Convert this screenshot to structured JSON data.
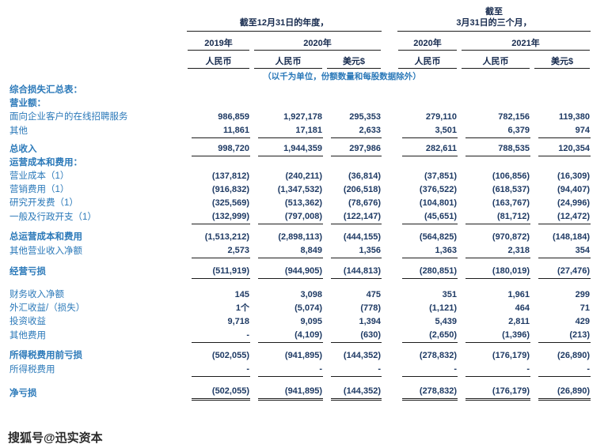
{
  "colors": {
    "label": "#2b79b9",
    "number": "#1e3a64",
    "header": "#15294d",
    "note": "#2b79b9",
    "line": "#1c1c1c"
  },
  "header": {
    "period1": "截至12月31日的年度，",
    "period2_line1": "截至",
    "period2_line2": "3月31日的三个月，",
    "years": [
      "2019年",
      "2020年",
      "2020年",
      "2021年"
    ],
    "currencies": [
      "人民币",
      "人民币",
      "美元$",
      "人民币",
      "人民币",
      "美元$"
    ],
    "unit_note": "（以千为单位，份额数量和每股数据除外）"
  },
  "table": {
    "rows": [
      {
        "label": "综合损失汇总表：",
        "bold": true
      },
      {
        "label": "营业额：",
        "bold": true
      },
      {
        "label": "面向企业客户的在线招聘服务",
        "values": [
          "986,859",
          "1,927,178",
          "295,353",
          "279,110",
          "782,156",
          "119,380"
        ]
      },
      {
        "label": "其他",
        "values": [
          "11,861",
          "17,181",
          "2,633",
          "3,501",
          "6,379",
          "974"
        ],
        "underline": true
      },
      {
        "spacer": 5
      },
      {
        "label": "总收入",
        "bold": true,
        "values": [
          "998,720",
          "1,944,359",
          "297,986",
          "282,611",
          "788,535",
          "120,354"
        ],
        "underline": true
      },
      {
        "label": "运营成本和费用：",
        "bold": true
      },
      {
        "label": "营业成本（1）",
        "values": [
          "(137,812)",
          "(240,211)",
          "(36,814)",
          "(37,851)",
          "(106,856)",
          "(16,309)"
        ]
      },
      {
        "label": "营销费用（1）",
        "values": [
          "(916,832)",
          "(1,347,532)",
          "(206,518)",
          "(376,522)",
          "(618,537)",
          "(94,407)"
        ]
      },
      {
        "label": "研究开发费（1）",
        "values": [
          "(325,569)",
          "(513,362)",
          "(78,676)",
          "(104,801)",
          "(163,767)",
          "(24,996)"
        ]
      },
      {
        "label": "一般及行政开支（1）",
        "values": [
          "(132,999)",
          "(797,008)",
          "(122,147)",
          "(45,651)",
          "(81,712)",
          "(12,472)"
        ],
        "underline": true
      },
      {
        "spacer": 8
      },
      {
        "label": "总运营成本和费用",
        "bold": true,
        "values": [
          "(1,513,212)",
          "(2,898,113)",
          "(444,155)",
          "(564,825)",
          "(970,872)",
          "(148,184)"
        ]
      },
      {
        "label": "其他营业收入净额",
        "values": [
          "2,573",
          "8,849",
          "1,356",
          "1,363",
          "2,318",
          "354"
        ],
        "underline": true
      },
      {
        "spacer": 8
      },
      {
        "label": "经营亏损",
        "bold": true,
        "values": [
          "(511,919)",
          "(944,905)",
          "(144,813)",
          "(280,851)",
          "(180,019)",
          "(27,476)"
        ],
        "underline": true
      },
      {
        "spacer": 12
      },
      {
        "label": "财务收入净额",
        "values": [
          "145",
          "3,098",
          "475",
          "351",
          "1,961",
          "299"
        ]
      },
      {
        "label": "外汇收益/（损失）",
        "values": [
          "1个",
          "(5,074)",
          "(778)",
          "(1,121)",
          "464",
          "71"
        ]
      },
      {
        "label": "投资收益",
        "values": [
          "9,718",
          "9,095",
          "1,394",
          "5,439",
          "2,811",
          "429"
        ]
      },
      {
        "label": "其他费用",
        "values": [
          "-",
          "(4,109)",
          "(630)",
          "(2,650)",
          "(1,396)",
          "(213)"
        ],
        "underline": true
      },
      {
        "spacer": 8
      },
      {
        "label": "所得税费用前亏损",
        "bold": true,
        "values": [
          "(502,055)",
          "(941,895)",
          "(144,352)",
          "(278,832)",
          "(176,179)",
          "(26,890)"
        ]
      },
      {
        "label": "所得税费用",
        "values": [
          "-",
          "-",
          "-",
          "-",
          "-",
          "-"
        ],
        "underline": true
      },
      {
        "spacer": 10
      },
      {
        "label": "净亏损",
        "bold": true,
        "values": [
          "(502,055)",
          "(941,895)",
          "(144,352)",
          "(278,832)",
          "(176,179)",
          "(26,890)"
        ],
        "underline": "double"
      }
    ]
  },
  "watermark": {
    "text": "搜狐号@迅实资本"
  }
}
